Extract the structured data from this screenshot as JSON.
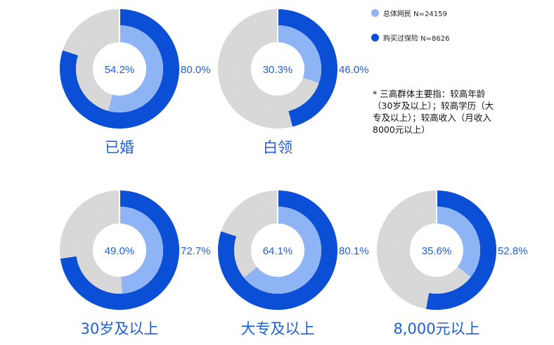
{
  "legend": [
    {
      "label": "总体网民 N=24159",
      "color": "#8fb4f5"
    },
    {
      "label": "购买过保险 N=8626",
      "color": "#0a4fd6"
    }
  ],
  "footnote": {
    "line1": "* 三高群体主要指：较高年龄",
    "line2": "（30岁及以上）；较高学历（大",
    "line3": "专及以上）；较高收入（月收入",
    "line4": "8000元以上）"
  },
  "chart_data": [
    {
      "type": "pie",
      "subtype": "nested-donut",
      "title": "已婚",
      "series": [
        {
          "name": "总体网民 N=24159",
          "value": 54.2,
          "label": "54.2%"
        },
        {
          "name": "购买过保险 N=8626",
          "value": 80.0,
          "label": "80.0%"
        }
      ]
    },
    {
      "type": "pie",
      "subtype": "nested-donut",
      "title": "白领",
      "series": [
        {
          "name": "总体网民 N=24159",
          "value": 30.3,
          "label": "30.3%"
        },
        {
          "name": "购买过保险 N=8626",
          "value": 46.0,
          "label": "46.0%"
        }
      ]
    },
    {
      "type": "pie",
      "subtype": "nested-donut",
      "title": "30岁及以上",
      "series": [
        {
          "name": "总体网民 N=24159",
          "value": 49.0,
          "label": "49.0%"
        },
        {
          "name": "购买过保险 N=8626",
          "value": 72.7,
          "label": "72.7%"
        }
      ]
    },
    {
      "type": "pie",
      "subtype": "nested-donut",
      "title": "大专及以上",
      "series": [
        {
          "name": "总体网民 N=24159",
          "value": 64.1,
          "label": "64.1%"
        },
        {
          "name": "购买过保险 N=8626",
          "value": 80.1,
          "label": "80.1%"
        }
      ]
    },
    {
      "type": "pie",
      "subtype": "nested-donut",
      "title": "8,000元以上",
      "series": [
        {
          "name": "总体网民 N=24159",
          "value": 35.6,
          "label": "35.6%"
        },
        {
          "name": "购买过保险 N=8626",
          "value": 52.8,
          "label": "52.8%"
        }
      ]
    }
  ],
  "colors": {
    "inner": "#8fb4f5",
    "outer": "#0a4fd6",
    "track": "#d8d8d8",
    "label": "#1f5fd6"
  }
}
